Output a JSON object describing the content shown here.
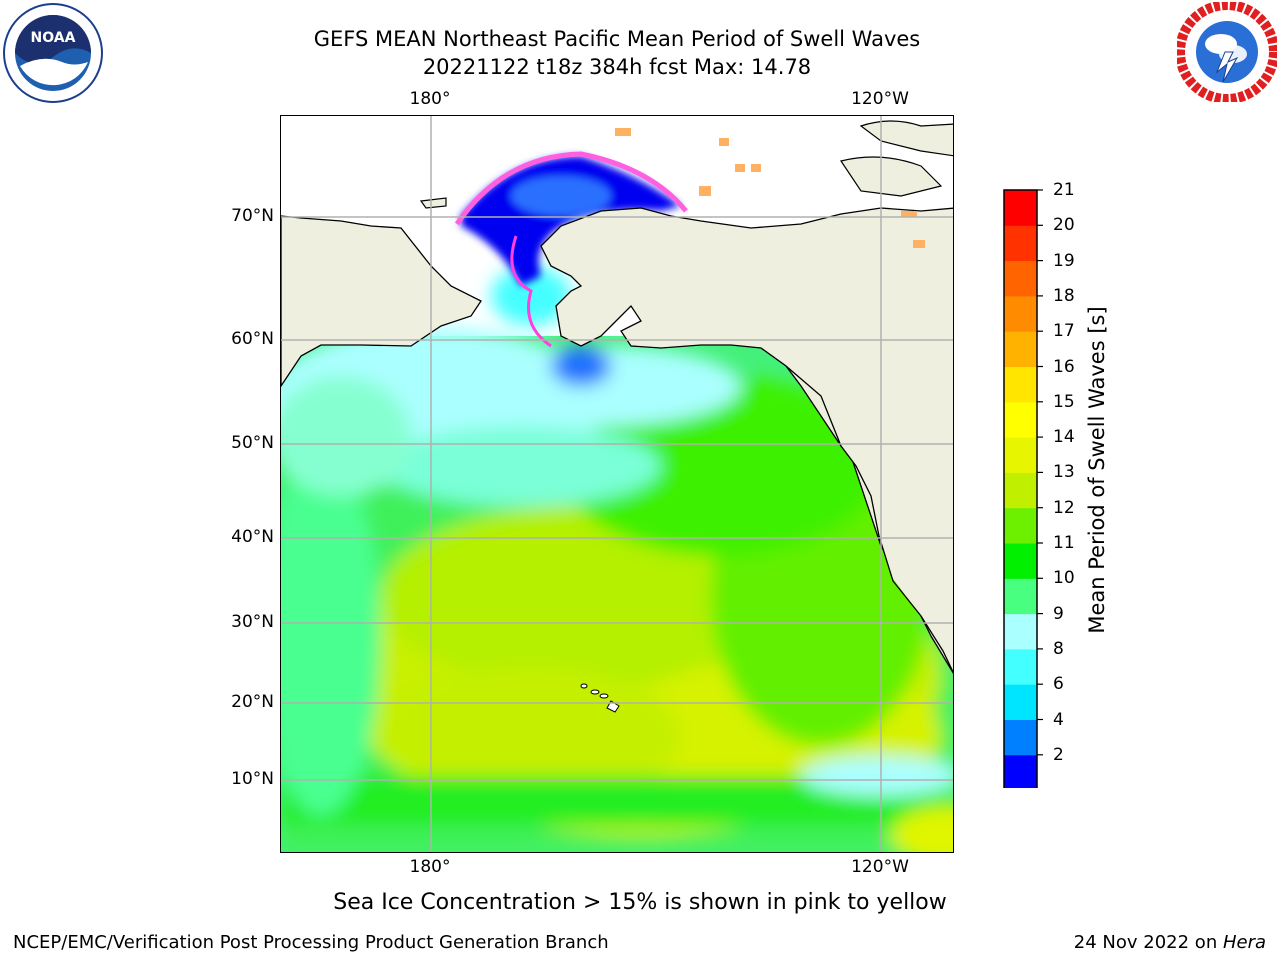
{
  "header": {
    "title": "GEFS MEAN Northeast Pacific Mean Period of Swell Waves",
    "subtitle": "20221122 t18z 384h fcst   Max: 14.78"
  },
  "logos": {
    "left": {
      "icon": "noaa-logo",
      "text": "NOAA"
    },
    "right": {
      "icon": "national-weather-service-logo",
      "text": "NATIONAL WEATHER SERVICE"
    }
  },
  "map": {
    "lon_ticks_top": [
      "180°",
      "120°W"
    ],
    "lon_ticks_bottom": [
      "180°",
      "120°W"
    ],
    "lat_ticks": [
      "70°N",
      "60°N",
      "50°N",
      "40°N",
      "30°N",
      "20°N",
      "10°N"
    ],
    "land_color": "#efefdf",
    "grid": true
  },
  "colorbar": {
    "title": "Mean Period of Swell Waves [s]",
    "labels": [
      "21",
      "20",
      "19",
      "18",
      "17",
      "16",
      "15",
      "14",
      "13",
      "12",
      "11",
      "10",
      "9",
      "8",
      "6",
      "4",
      "2"
    ],
    "colors": [
      "#0000ff",
      "#007fff",
      "#00e5ff",
      "#44ffff",
      "#aaffff",
      "#49ff7f",
      "#00f000",
      "#6cf000",
      "#c0f000",
      "#e8f500",
      "#ffff00",
      "#ffe500",
      "#ffb200",
      "#ff8c00",
      "#ff6400",
      "#ff3200",
      "#ff0000"
    ],
    "extend": "min"
  },
  "footer": {
    "note": "Sea Ice Concentration > 15% is shown in pink to yellow",
    "credit_left": "NCEP/EMC/Verification Post Processing Product Generation Branch",
    "credit_date": "24 Nov 2022 on ",
    "credit_host": "Hera"
  }
}
